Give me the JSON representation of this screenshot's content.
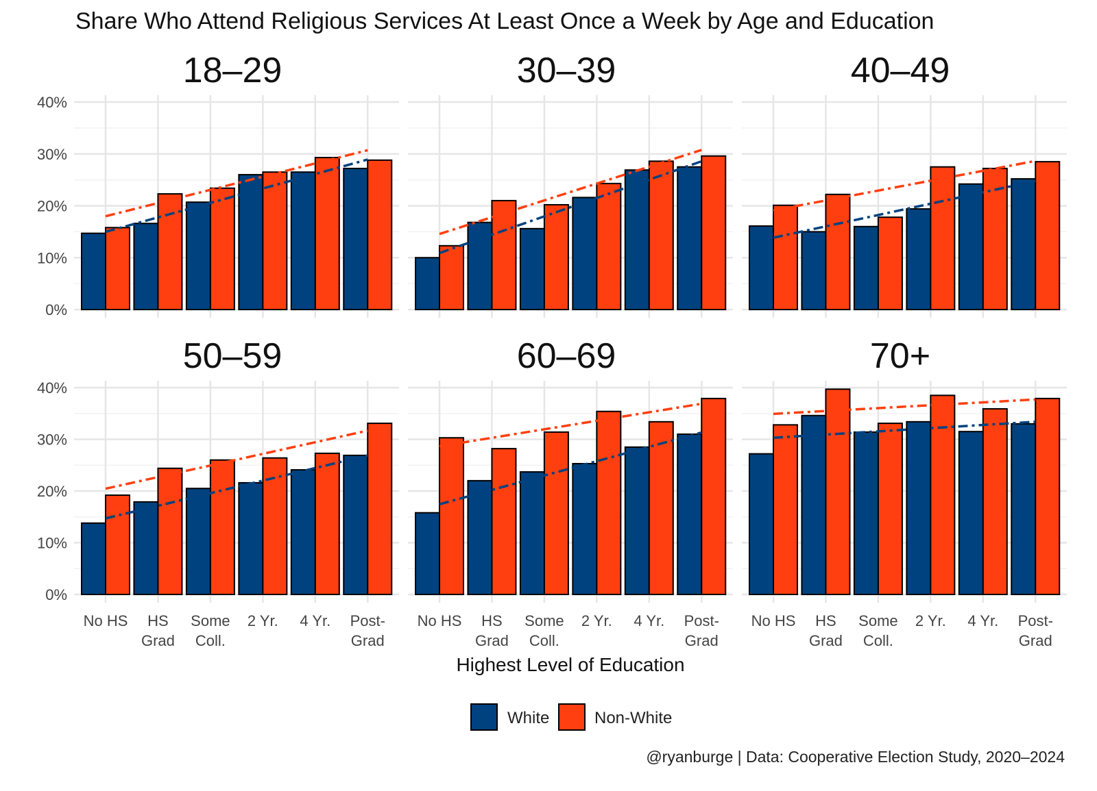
{
  "chart_data": {
    "type": "bar",
    "title": "Share Who Attend Religious Services At Least Once a Week by Age and Education",
    "xlabel": "Highest Level of Education",
    "ylabel": "",
    "ylim": [
      0,
      40
    ],
    "yticks": [
      "0%",
      "10%",
      "20%",
      "30%",
      "40%"
    ],
    "categories": [
      [
        "No HS"
      ],
      [
        "HS",
        "Grad"
      ],
      [
        "Some",
        "Coll."
      ],
      [
        "2 Yr."
      ],
      [
        "4 Yr."
      ],
      [
        "Post-",
        "Grad"
      ]
    ],
    "legend": {
      "placement": "bottom",
      "entries": [
        "White",
        "Non-White"
      ]
    },
    "colors": {
      "White": "#00427f",
      "Non-White": "#ff3f0f"
    },
    "trend_lines": "linear fit per series (dash-dot)",
    "caption": "@ryanburge | Data: Cooperative Election Study, 2020–2024",
    "panels": [
      {
        "label": "18–29",
        "series": [
          {
            "name": "White",
            "values": [
              14.7,
              16.6,
              20.7,
              26.0,
              26.5,
              27.2
            ]
          },
          {
            "name": "Non-White",
            "values": [
              15.8,
              22.3,
              23.4,
              26.5,
              29.3,
              28.8
            ]
          }
        ]
      },
      {
        "label": "30–39",
        "series": [
          {
            "name": "White",
            "values": [
              10.0,
              16.8,
              15.6,
              21.6,
              26.9,
              27.5
            ]
          },
          {
            "name": "Non-White",
            "values": [
              12.3,
              21.0,
              20.2,
              24.3,
              28.6,
              29.6
            ]
          }
        ]
      },
      {
        "label": "40–49",
        "series": [
          {
            "name": "White",
            "values": [
              16.1,
              15.0,
              16.0,
              19.4,
              24.2,
              25.2
            ]
          },
          {
            "name": "Non-White",
            "values": [
              20.1,
              22.2,
              17.8,
              27.5,
              27.2,
              28.5
            ]
          }
        ]
      },
      {
        "label": "50–59",
        "series": [
          {
            "name": "White",
            "values": [
              13.8,
              17.9,
              20.5,
              21.6,
              24.1,
              26.9
            ]
          },
          {
            "name": "Non-White",
            "values": [
              19.2,
              24.4,
              26.0,
              26.4,
              27.3,
              33.1
            ]
          }
        ]
      },
      {
        "label": "60–69",
        "series": [
          {
            "name": "White",
            "values": [
              15.8,
              22.0,
              23.7,
              25.3,
              28.5,
              31.0
            ]
          },
          {
            "name": "Non-White",
            "values": [
              30.3,
              28.2,
              31.4,
              35.4,
              33.4,
              37.9
            ]
          }
        ]
      },
      {
        "label": "70+",
        "series": [
          {
            "name": "White",
            "values": [
              27.2,
              34.6,
              31.4,
              33.4,
              31.5,
              33.0
            ]
          },
          {
            "name": "Non-White",
            "values": [
              32.8,
              39.7,
              33.1,
              38.5,
              35.9,
              37.9
            ]
          }
        ]
      }
    ]
  }
}
